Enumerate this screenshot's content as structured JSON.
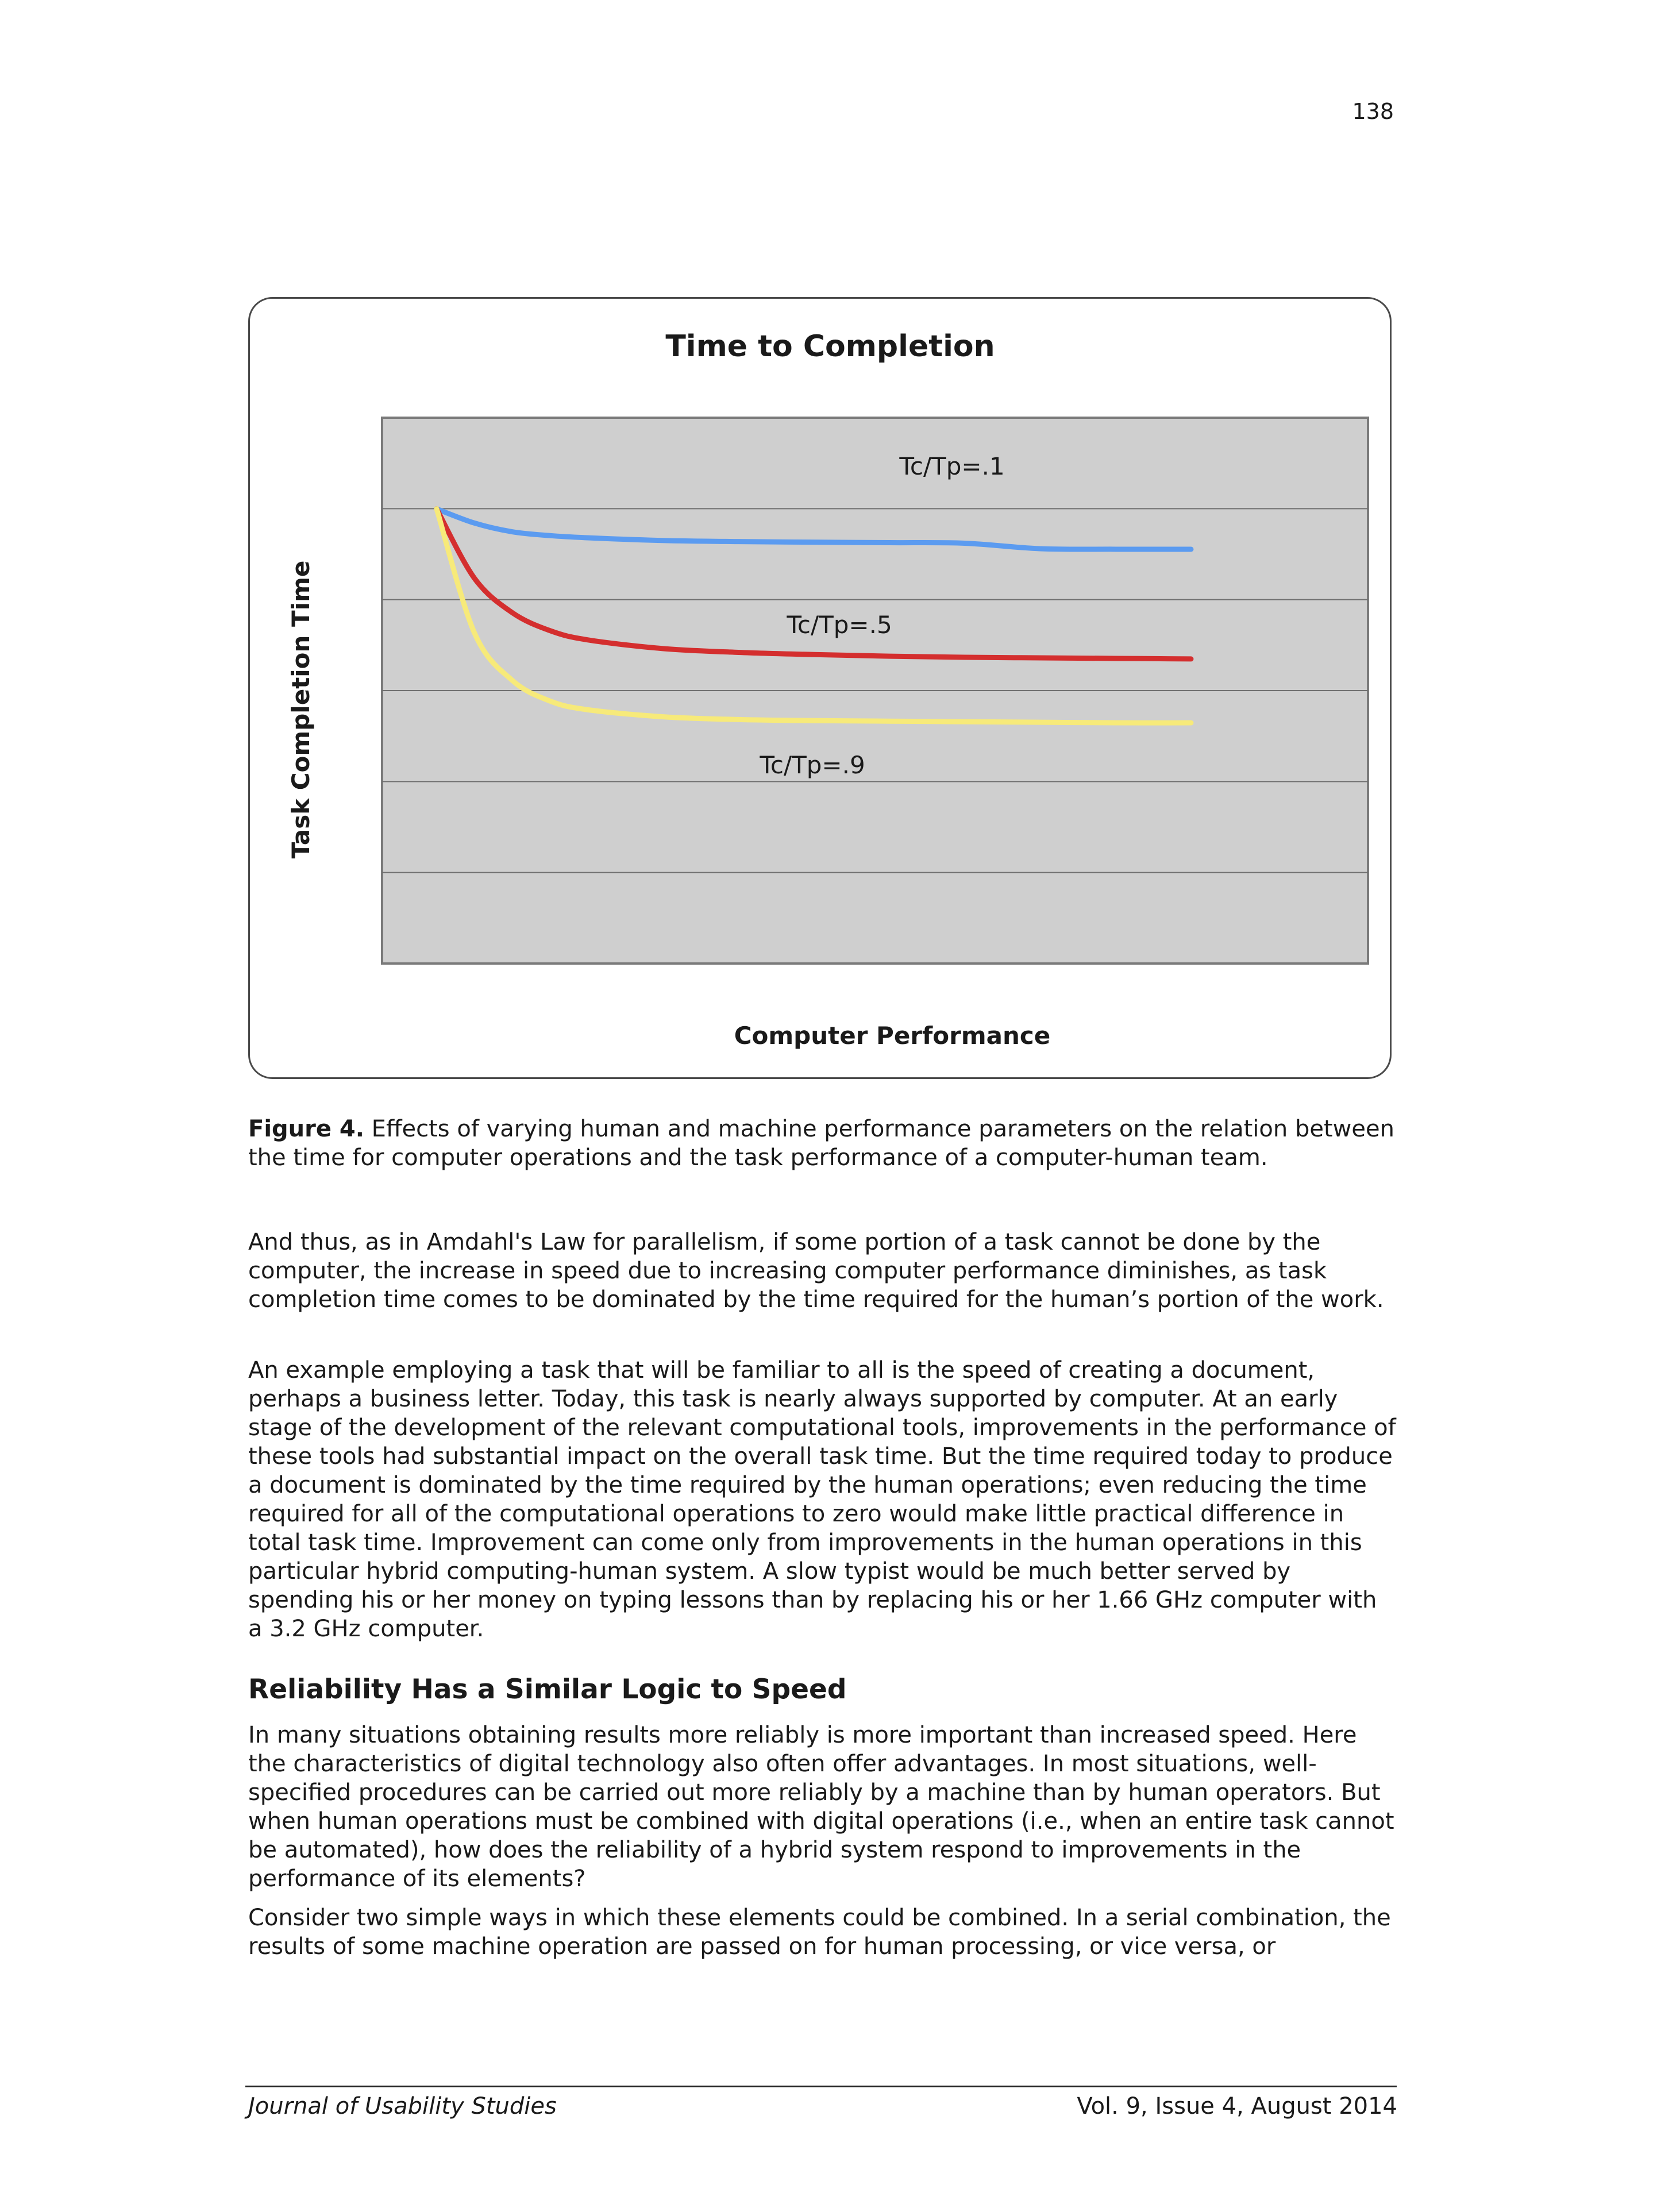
{
  "page_number": "138",
  "chart_data": {
    "type": "line",
    "title": "Time to Completion",
    "xlabel": "Computer Performance",
    "ylabel": "Task Completion Time",
    "xlim": [
      0,
      1
    ],
    "ylim": [
      0,
      1
    ],
    "grid": true,
    "x": [
      0,
      0.05,
      0.1,
      0.15,
      0.2,
      0.3,
      0.4,
      0.5,
      0.6,
      0.7,
      0.8,
      0.9,
      1.0
    ],
    "series": [
      {
        "name": "Tc/Tp=.1",
        "color": "#5b9bf0",
        "values": [
          0.833,
          0.807,
          0.791,
          0.784,
          0.78,
          0.775,
          0.773,
          0.772,
          0.771,
          0.77,
          0.76,
          0.759,
          0.759
        ]
      },
      {
        "name": "Tc/Tp=.5",
        "color": "#d42e2e",
        "values": [
          0.833,
          0.706,
          0.643,
          0.61,
          0.593,
          0.577,
          0.57,
          0.566,
          0.563,
          0.561,
          0.56,
          0.559,
          0.558
        ]
      },
      {
        "name": "Tc/Tp=.9",
        "color": "#f7ea7a",
        "values": [
          0.833,
          0.606,
          0.519,
          0.481,
          0.465,
          0.452,
          0.447,
          0.445,
          0.444,
          0.443,
          0.442,
          0.441,
          0.441
        ]
      }
    ]
  },
  "caption": {
    "label": "Figure 4.",
    "text": " Effects of varying human and machine performance parameters on the relation between the time for computer operations and the task performance of a computer-human team."
  },
  "paragraphs": {
    "p1": "And thus, as in Amdahl's Law for parallelism, if some portion of a task cannot be done by the computer, the increase in speed due to increasing computer performance diminishes, as task completion time comes to be dominated by the time required for the human’s portion of the work.",
    "p2": "An example employing a task that will be familiar to all is the speed of creating a document, perhaps a business letter. Today, this task is nearly always supported by computer. At an early stage of the development of the relevant computational tools, improvements in the performance of these tools had substantial impact on the overall task time. But the time required today to produce a document is dominated by the time required by the human operations; even reducing the time required for all of the computational operations to zero would make little practical difference in total task time. Improvement can come only from improvements in the human operations in this particular hybrid computing-human system. A slow typist would be much better served by spending his or her money on typing lessons than by replacing his or her 1.66 GHz computer with a 3.2 GHz computer.",
    "heading": "Reliability Has a Similar Logic to Speed",
    "p3": "In many situations obtaining results more reliably is more important than increased speed. Here the characteristics of digital technology also often offer advantages. In most situations, well-specified procedures can be carried out more reliably by a machine than by human operators. But when human operations must be combined with digital operations (i.e., when an entire task cannot be automated), how does the reliability of a hybrid system respond to improvements in the performance of its elements?",
    "p4": "Consider two simple ways in which these elements could be combined. In a serial combination, the results of some machine operation are passed on for human processing, or vice versa, or"
  },
  "footer": {
    "journal": "Journal of Usability Studies",
    "issue": "Vol. 9, Issue 4, August 2014"
  }
}
